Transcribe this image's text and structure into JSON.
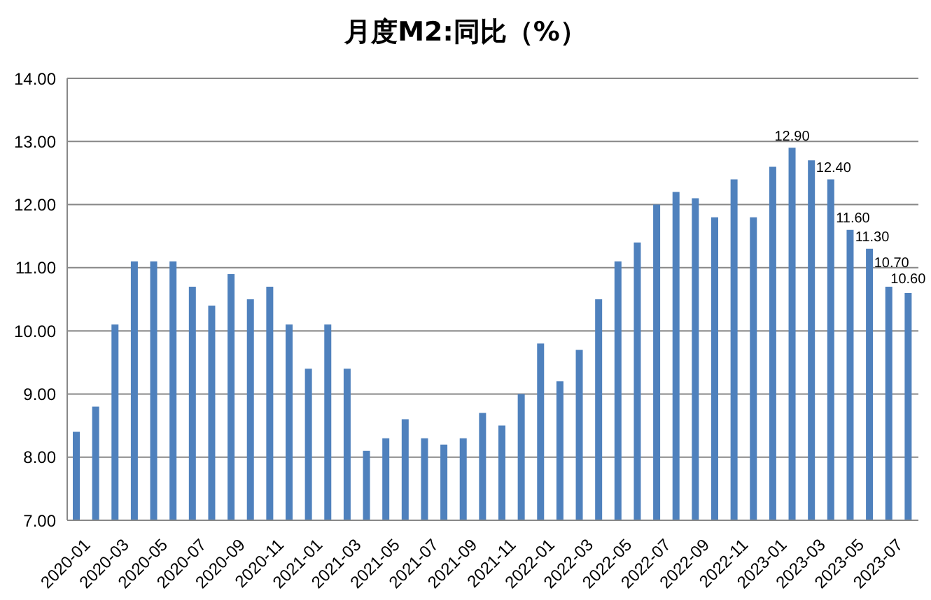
{
  "chart_data": {
    "type": "bar",
    "title": "月度M2:同比（%）",
    "categories": [
      "2020-01",
      null,
      "2020-03",
      null,
      "2020-05",
      null,
      "2020-07",
      null,
      "2020-09",
      null,
      "2020-11",
      null,
      "2021-01",
      null,
      "2021-03",
      null,
      "2021-05",
      null,
      "2021-07",
      null,
      "2021-09",
      null,
      "2021-11",
      null,
      "2022-01",
      null,
      "2022-03",
      null,
      "2022-05",
      null,
      "2022-07",
      null,
      "2022-09",
      null,
      "2022-11",
      null,
      "2023-01",
      null,
      "2023-03",
      null,
      "2023-05",
      null,
      "2023-07",
      null
    ],
    "values": [
      8.4,
      8.8,
      10.1,
      11.1,
      11.1,
      11.1,
      10.7,
      10.4,
      10.9,
      10.5,
      10.7,
      10.1,
      9.4,
      10.1,
      9.4,
      8.1,
      8.3,
      8.6,
      8.3,
      8.2,
      8.3,
      8.7,
      8.5,
      9.0,
      9.8,
      9.2,
      9.7,
      10.5,
      11.1,
      11.4,
      12.0,
      12.2,
      12.1,
      11.8,
      12.4,
      11.8,
      12.6,
      12.9,
      12.7,
      12.4,
      11.6,
      11.3,
      10.7,
      10.6
    ],
    "value_labels": [
      null,
      null,
      null,
      null,
      null,
      null,
      null,
      null,
      null,
      null,
      null,
      null,
      null,
      null,
      null,
      null,
      null,
      null,
      null,
      null,
      null,
      null,
      null,
      null,
      null,
      null,
      null,
      null,
      null,
      null,
      null,
      null,
      null,
      null,
      null,
      null,
      null,
      "12.90",
      null,
      "12.40",
      "11.60",
      "11.30",
      "10.70",
      "10.60"
    ],
    "color": "#4f81bd",
    "ylim": [
      7,
      14
    ],
    "yticks": [
      {
        "value": 7,
        "label": "7.00"
      },
      {
        "value": 8,
        "label": "8.00"
      },
      {
        "value": 9,
        "label": "9.00"
      },
      {
        "value": 10,
        "label": "10.00"
      },
      {
        "value": 11,
        "label": "11.00"
      },
      {
        "value": 12,
        "label": "12.00"
      },
      {
        "value": 13,
        "label": "13.00"
      },
      {
        "value": 14,
        "label": "14.00"
      }
    ],
    "grid": "y"
  }
}
